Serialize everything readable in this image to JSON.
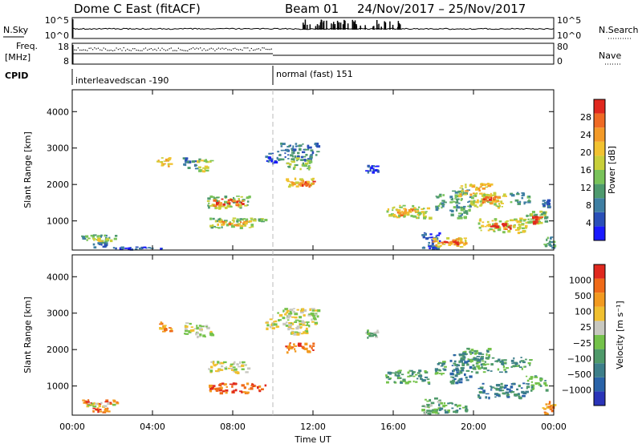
{
  "header": {
    "title": "Dome C East (fitACF)",
    "beam": "Beam 01",
    "dates": "24/Nov/2017 – 25/Nov/2017"
  },
  "top_panels": {
    "nsky_label": "N.Sky",
    "nsky_ticks": [
      "10^5",
      "10^0"
    ],
    "nsearch_label": "N.Search",
    "nsearch_ticks": [
      "10^5",
      "10^0"
    ],
    "freq_label": "Freq.",
    "freq_unit": "[MHz]",
    "freq_ticks": [
      "18",
      "8"
    ],
    "nave_label": "Nave",
    "nave_ticks": [
      "80",
      "0"
    ],
    "cpid_label": "CPID",
    "cpid_segments": [
      {
        "label": "interleavedscan -190",
        "start_hour": 0,
        "end_hour": 10
      },
      {
        "label": "normal (fast) 151",
        "start_hour": 10,
        "end_hour": 24
      }
    ]
  },
  "chart_data": [
    {
      "type": "heatmap",
      "name": "power",
      "ylabel": "Slant Range [km]",
      "yticks": [
        1000,
        2000,
        3000,
        4000
      ],
      "ylim": [
        200,
        4600
      ],
      "xlim": [
        0,
        24
      ],
      "colorbar": {
        "label": "Power [dB]",
        "ticks": [
          "4",
          "8",
          "12",
          "16",
          "20",
          "24",
          "28"
        ],
        "colors": [
          "#1a1aff",
          "#2a4fb8",
          "#3f7fa3",
          "#4e9a6e",
          "#79c35a",
          "#c8cf3a",
          "#f2c230",
          "#f39a28",
          "#ef6a24",
          "#e0281e"
        ]
      },
      "patches": [
        {
          "x0": 0.4,
          "x1": 2.2,
          "y0": 520,
          "y1": 640,
          "level": 3
        },
        {
          "x0": 0.7,
          "x1": 2.0,
          "y0": 460,
          "y1": 560,
          "level": 5
        },
        {
          "x0": 1.0,
          "x1": 1.8,
          "y0": 300,
          "y1": 440,
          "level": 2
        },
        {
          "x0": 2.0,
          "x1": 4.5,
          "y0": 240,
          "y1": 300,
          "level": 1
        },
        {
          "x0": 4.2,
          "x1": 4.9,
          "y0": 2500,
          "y1": 2780,
          "level": 6
        },
        {
          "x0": 5.5,
          "x1": 6.3,
          "y0": 2450,
          "y1": 2750,
          "level": 2
        },
        {
          "x0": 6.2,
          "x1": 6.9,
          "y0": 2350,
          "y1": 2700,
          "level": 5
        },
        {
          "x0": 6.7,
          "x1": 8.8,
          "y0": 1380,
          "y1": 1700,
          "level": 4
        },
        {
          "x0": 7.0,
          "x1": 8.5,
          "y0": 1420,
          "y1": 1620,
          "level": 8
        },
        {
          "x0": 6.8,
          "x1": 9.6,
          "y0": 830,
          "y1": 1100,
          "level": 4
        },
        {
          "x0": 7.2,
          "x1": 8.8,
          "y0": 880,
          "y1": 1020,
          "level": 7
        },
        {
          "x0": 9.6,
          "x1": 10.2,
          "y0": 2600,
          "y1": 2900,
          "level": 1
        },
        {
          "x0": 10.2,
          "x1": 12.2,
          "y0": 2700,
          "y1": 3150,
          "level": 2
        },
        {
          "x0": 10.5,
          "x1": 11.8,
          "y0": 2450,
          "y1": 2750,
          "level": 4
        },
        {
          "x0": 10.6,
          "x1": 12.0,
          "y0": 1950,
          "y1": 2200,
          "level": 6
        },
        {
          "x0": 11.2,
          "x1": 12.0,
          "y0": 1980,
          "y1": 2120,
          "level": 8
        },
        {
          "x0": 14.6,
          "x1": 15.2,
          "y0": 2350,
          "y1": 2550,
          "level": 1
        },
        {
          "x0": 15.6,
          "x1": 17.8,
          "y0": 1100,
          "y1": 1450,
          "level": 5
        },
        {
          "x0": 16.0,
          "x1": 17.2,
          "y0": 1180,
          "y1": 1350,
          "level": 7
        },
        {
          "x0": 17.4,
          "x1": 18.3,
          "y0": 250,
          "y1": 700,
          "level": 1
        },
        {
          "x0": 17.9,
          "x1": 19.6,
          "y0": 300,
          "y1": 560,
          "level": 6
        },
        {
          "x0": 18.3,
          "x1": 19.2,
          "y0": 380,
          "y1": 500,
          "level": 8
        },
        {
          "x0": 18.0,
          "x1": 18.6,
          "y0": 1350,
          "y1": 1750,
          "level": 3
        },
        {
          "x0": 18.8,
          "x1": 19.8,
          "y0": 1100,
          "y1": 1900,
          "level": 3
        },
        {
          "x0": 19.2,
          "x1": 20.8,
          "y0": 1700,
          "y1": 2050,
          "level": 6
        },
        {
          "x0": 19.8,
          "x1": 21.6,
          "y0": 1400,
          "y1": 1800,
          "level": 5
        },
        {
          "x0": 20.4,
          "x1": 21.2,
          "y0": 1500,
          "y1": 1700,
          "level": 8
        },
        {
          "x0": 20.2,
          "x1": 22.6,
          "y0": 700,
          "y1": 1100,
          "level": 5
        },
        {
          "x0": 20.8,
          "x1": 21.8,
          "y0": 780,
          "y1": 950,
          "level": 9
        },
        {
          "x0": 21.8,
          "x1": 22.8,
          "y0": 1500,
          "y1": 1800,
          "level": 3
        },
        {
          "x0": 22.6,
          "x1": 23.6,
          "y0": 900,
          "y1": 1300,
          "level": 4
        },
        {
          "x0": 22.9,
          "x1": 23.3,
          "y0": 950,
          "y1": 1150,
          "level": 9
        },
        {
          "x0": 23.4,
          "x1": 23.9,
          "y0": 1400,
          "y1": 1600,
          "level": 2
        },
        {
          "x0": 23.4,
          "x1": 24.0,
          "y0": 250,
          "y1": 600,
          "level": 3
        }
      ]
    },
    {
      "type": "heatmap",
      "name": "velocity",
      "xlabel": "Time UT",
      "ylabel": "Slant Range [km]",
      "xticks": [
        "00:00",
        "04:00",
        "08:00",
        "12:00",
        "16:00",
        "20:00",
        "00:00"
      ],
      "yticks": [
        1000,
        2000,
        3000,
        4000
      ],
      "ylim": [
        200,
        4600
      ],
      "xlim": [
        0,
        24
      ],
      "colorbar": {
        "label": "Velocity [m s⁻¹]",
        "ticks": [
          "1000",
          "500",
          "100",
          "25",
          "−25",
          "−100",
          "−500",
          "−1000"
        ],
        "colors": [
          "#2a34b8",
          "#2a63a8",
          "#3d7f8a",
          "#4f9a6a",
          "#74c24a",
          "#c8c8c0",
          "#f0c030",
          "#f29a20",
          "#ef6a18",
          "#e0281e"
        ]
      },
      "patches": [
        {
          "x0": 0.4,
          "x1": 2.2,
          "y0": 520,
          "y1": 640,
          "level": 8
        },
        {
          "x0": 0.7,
          "x1": 2.0,
          "y0": 460,
          "y1": 560,
          "level": 5
        },
        {
          "x0": 1.0,
          "x1": 1.8,
          "y0": 300,
          "y1": 440,
          "level": 8
        },
        {
          "x0": 4.2,
          "x1": 4.9,
          "y0": 2500,
          "y1": 2780,
          "level": 7
        },
        {
          "x0": 5.5,
          "x1": 6.3,
          "y0": 2450,
          "y1": 2750,
          "level": 5
        },
        {
          "x0": 6.2,
          "x1": 6.9,
          "y0": 2350,
          "y1": 2700,
          "level": 5
        },
        {
          "x0": 6.7,
          "x1": 8.8,
          "y0": 1380,
          "y1": 1700,
          "level": 5
        },
        {
          "x0": 6.8,
          "x1": 9.6,
          "y0": 830,
          "y1": 1100,
          "level": 8
        },
        {
          "x0": 9.6,
          "x1": 10.2,
          "y0": 2600,
          "y1": 2900,
          "level": 5
        },
        {
          "x0": 10.2,
          "x1": 12.2,
          "y0": 2700,
          "y1": 3150,
          "level": 5
        },
        {
          "x0": 10.5,
          "x1": 11.8,
          "y0": 2450,
          "y1": 2750,
          "level": 5
        },
        {
          "x0": 10.6,
          "x1": 12.0,
          "y0": 1950,
          "y1": 2200,
          "level": 8
        },
        {
          "x0": 14.6,
          "x1": 15.2,
          "y0": 2350,
          "y1": 2550,
          "level": 4
        },
        {
          "x0": 15.6,
          "x1": 17.8,
          "y0": 1100,
          "y1": 1450,
          "level": 3
        },
        {
          "x0": 17.4,
          "x1": 18.3,
          "y0": 250,
          "y1": 700,
          "level": 4
        },
        {
          "x0": 17.9,
          "x1": 19.6,
          "y0": 300,
          "y1": 560,
          "level": 3
        },
        {
          "x0": 18.0,
          "x1": 18.6,
          "y0": 1350,
          "y1": 1750,
          "level": 3
        },
        {
          "x0": 18.8,
          "x1": 19.8,
          "y0": 1100,
          "y1": 1900,
          "level": 2
        },
        {
          "x0": 19.2,
          "x1": 20.8,
          "y0": 1700,
          "y1": 2050,
          "level": 3
        },
        {
          "x0": 19.8,
          "x1": 21.6,
          "y0": 1400,
          "y1": 1800,
          "level": 3
        },
        {
          "x0": 20.2,
          "x1": 22.6,
          "y0": 700,
          "y1": 1100,
          "level": 2
        },
        {
          "x0": 21.8,
          "x1": 22.8,
          "y0": 1500,
          "y1": 1800,
          "level": 3
        },
        {
          "x0": 22.6,
          "x1": 23.6,
          "y0": 900,
          "y1": 1300,
          "level": 3
        },
        {
          "x0": 23.4,
          "x1": 24.0,
          "y0": 250,
          "y1": 600,
          "level": 7
        }
      ]
    }
  ]
}
